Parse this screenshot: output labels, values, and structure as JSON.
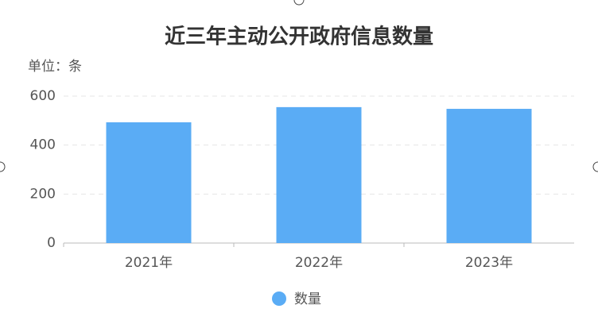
{
  "chart_data": {
    "type": "bar",
    "title": "近三年主动公开政府信息数量",
    "unit_label": "单位：条",
    "categories": [
      "2021年",
      "2022年",
      "2023年"
    ],
    "series": [
      {
        "name": "数量",
        "color": "#5aacf5",
        "values": [
          493,
          555,
          548
        ]
      }
    ],
    "ylim": [
      0,
      600
    ],
    "yticks": [
      0,
      200,
      400,
      600
    ],
    "grid": true
  }
}
